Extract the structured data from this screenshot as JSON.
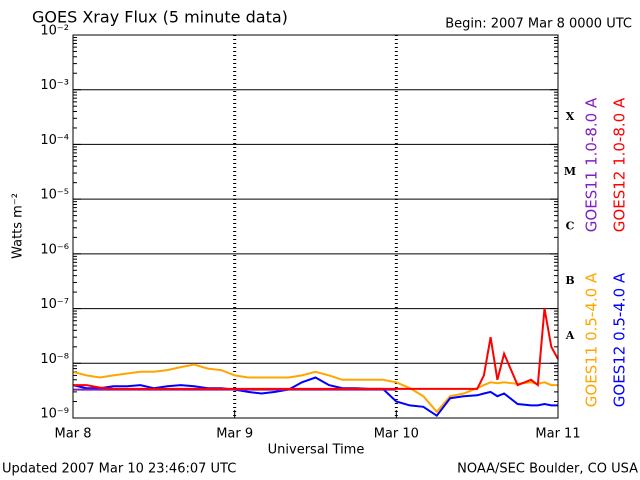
{
  "chart_data": {
    "type": "line",
    "title": "GOES Xray Flux (5 minute data)",
    "subtitle": "Begin:  2007 Mar 8 0000 UTC",
    "x_label": "Universal Time",
    "y_label": "Watts m⁻²",
    "footer_left": "Updated 2007 Mar 10 23:46:07 UTC",
    "footer_right": "NOAA/SEC Boulder, CO USA",
    "log_y": true,
    "grid": true,
    "xlim": [
      0,
      72
    ],
    "xticks": [
      {
        "value": 0,
        "label": "Mar 8"
      },
      {
        "value": 24,
        "label": "Mar 9"
      },
      {
        "value": 48,
        "label": "Mar 10"
      },
      {
        "value": 72,
        "label": "Mar 11"
      }
    ],
    "ylim": [
      1e-09,
      0.01
    ],
    "yticks": [
      {
        "value": 1e-09,
        "label": "10⁻⁹"
      },
      {
        "value": 1e-08,
        "label": "10⁻⁸"
      },
      {
        "value": 1e-07,
        "label": "10⁻⁷"
      },
      {
        "value": 1e-06,
        "label": "10⁻⁶"
      },
      {
        "value": 1e-05,
        "label": "10⁻⁵"
      },
      {
        "value": 0.0001,
        "label": "10⁻⁴"
      },
      {
        "value": 0.001,
        "label": "10⁻³"
      },
      {
        "value": 0.01,
        "label": "10⁻²"
      }
    ],
    "flare_classes": [
      {
        "value": 1e-08,
        "label": "A"
      },
      {
        "value": 1e-07,
        "label": "B"
      },
      {
        "value": 1e-06,
        "label": "C"
      },
      {
        "value": 1e-05,
        "label": "M"
      },
      {
        "value": 0.0001,
        "label": "X"
      }
    ],
    "x": [
      0,
      2,
      4,
      6,
      8,
      10,
      12,
      14,
      16,
      18,
      20,
      22,
      24,
      26,
      28,
      30,
      32,
      34,
      36,
      38,
      40,
      42,
      44,
      46,
      48,
      50,
      52,
      54,
      56,
      58,
      60,
      61,
      62,
      63,
      64,
      66,
      68,
      69,
      70,
      71,
      72
    ],
    "series": [
      {
        "name": "GOES11 0.5-4.0 A",
        "color": "#ffa500",
        "legend_side": "bottom",
        "values": [
          7e-09,
          6e-09,
          5.5e-09,
          6e-09,
          6.5e-09,
          7e-09,
          7e-09,
          7.5e-09,
          8.5e-09,
          9.5e-09,
          8e-09,
          7.5e-09,
          6e-09,
          5.5e-09,
          5.5e-09,
          5.5e-09,
          5.5e-09,
          6e-09,
          7e-09,
          6e-09,
          5e-09,
          5e-09,
          5e-09,
          5e-09,
          4.5e-09,
          3.5e-09,
          2.5e-09,
          1.3e-09,
          2.5e-09,
          2.8e-09,
          3.5e-09,
          4e-09,
          4.5e-09,
          4.3e-09,
          4.5e-09,
          4.2e-09,
          4.5e-09,
          4.2e-09,
          4.5e-09,
          4e-09,
          4e-09
        ]
      },
      {
        "name": "GOES12 0.5-4.0 A",
        "color": "#0000ff",
        "legend_side": "bottom",
        "values": [
          4e-09,
          3.5e-09,
          3.5e-09,
          3.8e-09,
          3.8e-09,
          4e-09,
          3.5e-09,
          3.8e-09,
          4e-09,
          3.8e-09,
          3.5e-09,
          3.5e-09,
          3.3e-09,
          3e-09,
          2.8e-09,
          3e-09,
          3.3e-09,
          4.5e-09,
          5.5e-09,
          4e-09,
          3.5e-09,
          3.5e-09,
          3.4e-09,
          3.4e-09,
          2e-09,
          1.7e-09,
          1.6e-09,
          1.1e-09,
          2.3e-09,
          2.5e-09,
          2.6e-09,
          2.8e-09,
          3e-09,
          2.5e-09,
          2.8e-09,
          1.8e-09,
          1.7e-09,
          1.7e-09,
          1.8e-09,
          1.7e-09,
          1.7e-09
        ]
      },
      {
        "name": "GOES11 1.0-8.0 A",
        "color": "#8020c0",
        "legend_side": "top",
        "values": [
          3.3e-09,
          3.3e-09,
          3.3e-09,
          3.3e-09,
          3.3e-09,
          3.3e-09,
          3.3e-09,
          3.3e-09,
          3.3e-09,
          3.3e-09,
          3.3e-09,
          3.3e-09,
          3.3e-09,
          3.3e-09,
          3.3e-09,
          3.3e-09,
          3.3e-09,
          3.3e-09,
          3.3e-09,
          3.3e-09,
          3.3e-09,
          3.3e-09,
          3.3e-09,
          3.3e-09,
          3.3e-09,
          null,
          null,
          null,
          null,
          null,
          null,
          null,
          null,
          null,
          null,
          null,
          null,
          null,
          null,
          null,
          null
        ]
      },
      {
        "name": "GOES12 1.0-8.0 A",
        "color": "#ff0000",
        "legend_side": "top",
        "values": [
          4e-09,
          4e-09,
          3.6e-09,
          3.4e-09,
          3.4e-09,
          3.4e-09,
          3.4e-09,
          3.4e-09,
          3.4e-09,
          3.4e-09,
          3.4e-09,
          3.4e-09,
          3.4e-09,
          3.4e-09,
          3.4e-09,
          3.4e-09,
          3.4e-09,
          3.4e-09,
          3.4e-09,
          3.4e-09,
          3.4e-09,
          3.4e-09,
          3.4e-09,
          3.4e-09,
          3.4e-09,
          3.4e-09,
          3.4e-09,
          3.4e-09,
          3.4e-09,
          3.4e-09,
          3.4e-09,
          6e-09,
          3e-08,
          5e-09,
          1.5e-08,
          4e-09,
          5e-09,
          4e-09,
          1e-07,
          2e-08,
          1.2e-08
        ]
      }
    ]
  }
}
